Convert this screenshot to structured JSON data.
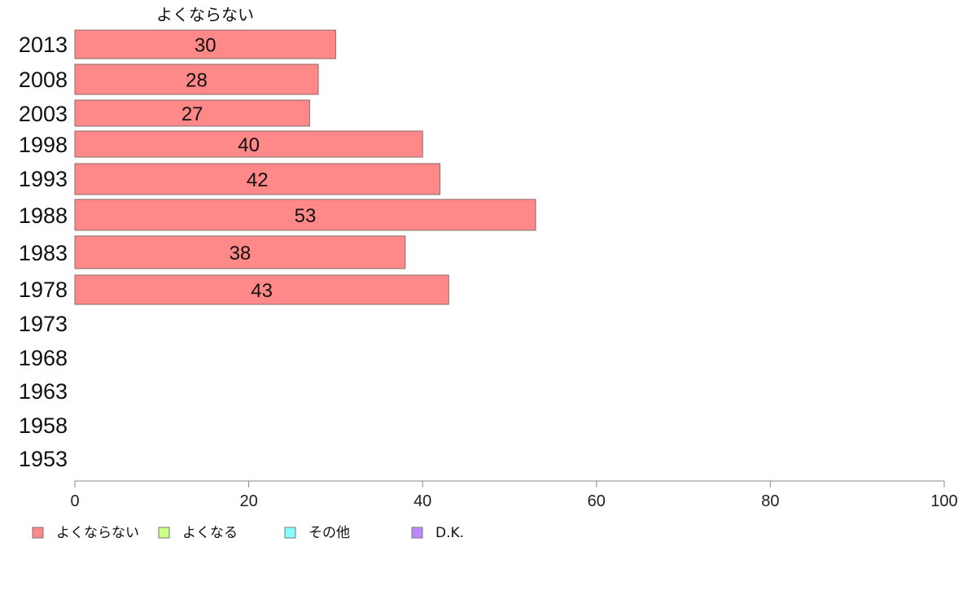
{
  "chart_data": {
    "type": "bar",
    "orientation": "horizontal",
    "categories": [
      "2013",
      "2008",
      "2003",
      "1998",
      "1993",
      "1988",
      "1983",
      "1978",
      "1973",
      "1968",
      "1963",
      "1958",
      "1953"
    ],
    "series": [
      {
        "name": "よくならない",
        "color": "#ff8888",
        "values": [
          30,
          28,
          27,
          40,
          42,
          53,
          38,
          43,
          null,
          null,
          null,
          null,
          null
        ]
      },
      {
        "name": "よくなる",
        "color": "#ccff88",
        "values": [
          null,
          null,
          null,
          null,
          null,
          null,
          null,
          null,
          null,
          null,
          null,
          null,
          null
        ]
      },
      {
        "name": "その他",
        "color": "#88ffff",
        "values": [
          null,
          null,
          null,
          null,
          null,
          null,
          null,
          null,
          null,
          null,
          null,
          null,
          null
        ]
      },
      {
        "name": "D.K.",
        "color": "#bb88ff",
        "values": [
          null,
          null,
          null,
          null,
          null,
          null,
          null,
          null,
          null,
          null,
          null,
          null,
          null
        ]
      }
    ],
    "series_title": "よくならない",
    "xlim": [
      0,
      100
    ],
    "xticks": [
      0,
      20,
      40,
      60,
      80,
      100
    ],
    "grid": false,
    "legend_position": "bottom-left"
  }
}
